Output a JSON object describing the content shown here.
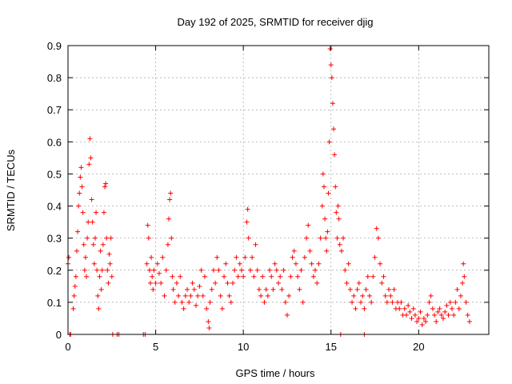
{
  "chart_data": {
    "type": "scatter",
    "title": "Day 192 of 2025, SRMTID for receiver djig",
    "xlabel": "GPS time / hours",
    "ylabel": "SRMTID / TECUs",
    "xlim": [
      0,
      24
    ],
    "ylim": [
      0,
      0.9
    ],
    "grid": true,
    "marker": "+",
    "series_color": "#ff0000",
    "x_ticks": [
      "0",
      "5",
      "10",
      "15",
      "20"
    ],
    "y_ticks": [
      "0",
      "0.1",
      "0.2",
      "0.3",
      "0.4",
      "0.5",
      "0.6",
      "0.7",
      "0.8",
      "0.9"
    ],
    "series": [
      {
        "name": "SRMTID",
        "points": [
          [
            0.0,
            0.22
          ],
          [
            0.05,
            0.24
          ],
          [
            0.1,
            0.0
          ],
          [
            0.15,
            0.0
          ],
          [
            0.3,
            0.08
          ],
          [
            0.35,
            0.12
          ],
          [
            0.4,
            0.15
          ],
          [
            0.45,
            0.18
          ],
          [
            0.5,
            0.26
          ],
          [
            0.55,
            0.32
          ],
          [
            0.6,
            0.4
          ],
          [
            0.65,
            0.44
          ],
          [
            0.7,
            0.49
          ],
          [
            0.75,
            0.52
          ],
          [
            0.8,
            0.46
          ],
          [
            0.85,
            0.38
          ],
          [
            0.9,
            0.28
          ],
          [
            0.95,
            0.2
          ],
          [
            1.0,
            0.24
          ],
          [
            1.05,
            0.18
          ],
          [
            1.1,
            0.3
          ],
          [
            1.15,
            0.35
          ],
          [
            1.2,
            0.53
          ],
          [
            1.25,
            0.61
          ],
          [
            1.3,
            0.55
          ],
          [
            1.35,
            0.42
          ],
          [
            1.4,
            0.35
          ],
          [
            1.45,
            0.28
          ],
          [
            1.5,
            0.22
          ],
          [
            1.55,
            0.3
          ],
          [
            1.6,
            0.38
          ],
          [
            1.65,
            0.2
          ],
          [
            1.7,
            0.12
          ],
          [
            1.75,
            0.08
          ],
          [
            1.8,
            0.18
          ],
          [
            1.85,
            0.26
          ],
          [
            1.9,
            0.14
          ],
          [
            1.95,
            0.2
          ],
          [
            2.0,
            0.28
          ],
          [
            2.05,
            0.38
          ],
          [
            2.1,
            0.46
          ],
          [
            2.15,
            0.47
          ],
          [
            2.2,
            0.3
          ],
          [
            2.25,
            0.2
          ],
          [
            2.3,
            0.16
          ],
          [
            2.35,
            0.25
          ],
          [
            2.4,
            0.22
          ],
          [
            2.45,
            0.3
          ],
          [
            2.5,
            0.18
          ],
          [
            2.55,
            0.0
          ],
          [
            2.8,
            0.0
          ],
          [
            2.9,
            0.0
          ],
          [
            4.3,
            0.0
          ],
          [
            4.4,
            0.0
          ],
          [
            15.55,
            0.0
          ],
          [
            16.9,
            0.0
          ],
          [
            4.5,
            0.22
          ],
          [
            4.55,
            0.34
          ],
          [
            4.6,
            0.3
          ],
          [
            4.65,
            0.2
          ],
          [
            4.7,
            0.16
          ],
          [
            4.75,
            0.24
          ],
          [
            4.8,
            0.18
          ],
          [
            4.85,
            0.14
          ],
          [
            4.9,
            0.2
          ],
          [
            5.0,
            0.16
          ],
          [
            5.1,
            0.22
          ],
          [
            5.2,
            0.19
          ],
          [
            5.3,
            0.16
          ],
          [
            5.4,
            0.24
          ],
          [
            5.5,
            0.12
          ],
          [
            5.6,
            0.2
          ],
          [
            5.7,
            0.28
          ],
          [
            5.75,
            0.36
          ],
          [
            5.8,
            0.42
          ],
          [
            5.85,
            0.44
          ],
          [
            5.9,
            0.3
          ],
          [
            5.95,
            0.18
          ],
          [
            6.0,
            0.14
          ],
          [
            6.1,
            0.1
          ],
          [
            6.2,
            0.16
          ],
          [
            6.3,
            0.12
          ],
          [
            6.4,
            0.18
          ],
          [
            6.5,
            0.1
          ],
          [
            6.6,
            0.08
          ],
          [
            6.7,
            0.12
          ],
          [
            6.8,
            0.14
          ],
          [
            6.9,
            0.1
          ],
          [
            7.0,
            0.12
          ],
          [
            7.1,
            0.16
          ],
          [
            7.2,
            0.14
          ],
          [
            7.3,
            0.09
          ],
          [
            7.4,
            0.12
          ],
          [
            7.5,
            0.15
          ],
          [
            7.6,
            0.2
          ],
          [
            7.7,
            0.12
          ],
          [
            7.8,
            0.18
          ],
          [
            7.9,
            0.08
          ],
          [
            8.0,
            0.04
          ],
          [
            8.05,
            0.02
          ],
          [
            8.1,
            0.1
          ],
          [
            8.2,
            0.14
          ],
          [
            8.3,
            0.2
          ],
          [
            8.4,
            0.16
          ],
          [
            8.5,
            0.24
          ],
          [
            8.6,
            0.2
          ],
          [
            8.7,
            0.12
          ],
          [
            8.8,
            0.08
          ],
          [
            8.9,
            0.18
          ],
          [
            9.0,
            0.22
          ],
          [
            9.1,
            0.16
          ],
          [
            9.2,
            0.12
          ],
          [
            9.3,
            0.1
          ],
          [
            9.4,
            0.16
          ],
          [
            9.5,
            0.2
          ],
          [
            9.6,
            0.24
          ],
          [
            9.7,
            0.18
          ],
          [
            9.8,
            0.22
          ],
          [
            9.9,
            0.2
          ],
          [
            10.0,
            0.18
          ],
          [
            10.1,
            0.24
          ],
          [
            10.2,
            0.35
          ],
          [
            10.25,
            0.39
          ],
          [
            10.3,
            0.3
          ],
          [
            10.4,
            0.2
          ],
          [
            10.5,
            0.24
          ],
          [
            10.6,
            0.18
          ],
          [
            10.7,
            0.28
          ],
          [
            10.8,
            0.2
          ],
          [
            10.9,
            0.14
          ],
          [
            11.0,
            0.12
          ],
          [
            11.1,
            0.18
          ],
          [
            11.2,
            0.1
          ],
          [
            11.3,
            0.14
          ],
          [
            11.4,
            0.12
          ],
          [
            11.5,
            0.2
          ],
          [
            11.6,
            0.18
          ],
          [
            11.7,
            0.14
          ],
          [
            11.8,
            0.22
          ],
          [
            11.9,
            0.2
          ],
          [
            12.0,
            0.16
          ],
          [
            12.1,
            0.18
          ],
          [
            12.2,
            0.14
          ],
          [
            12.3,
            0.2
          ],
          [
            12.4,
            0.1
          ],
          [
            12.5,
            0.06
          ],
          [
            12.6,
            0.12
          ],
          [
            12.7,
            0.18
          ],
          [
            12.8,
            0.24
          ],
          [
            12.9,
            0.26
          ],
          [
            13.0,
            0.22
          ],
          [
            13.1,
            0.18
          ],
          [
            13.2,
            0.14
          ],
          [
            13.3,
            0.2
          ],
          [
            13.4,
            0.1
          ],
          [
            13.5,
            0.24
          ],
          [
            13.6,
            0.3
          ],
          [
            13.7,
            0.34
          ],
          [
            13.8,
            0.26
          ],
          [
            13.9,
            0.22
          ],
          [
            14.0,
            0.18
          ],
          [
            14.1,
            0.2
          ],
          [
            14.2,
            0.16
          ],
          [
            14.3,
            0.22
          ],
          [
            14.4,
            0.3
          ],
          [
            14.5,
            0.4
          ],
          [
            14.55,
            0.5
          ],
          [
            14.6,
            0.46
          ],
          [
            14.65,
            0.36
          ],
          [
            14.7,
            0.3
          ],
          [
            14.75,
            0.26
          ],
          [
            14.8,
            0.32
          ],
          [
            14.85,
            0.44
          ],
          [
            14.9,
            0.6
          ],
          [
            14.95,
            0.89
          ],
          [
            15.0,
            0.84
          ],
          [
            15.05,
            0.8
          ],
          [
            15.1,
            0.72
          ],
          [
            15.15,
            0.64
          ],
          [
            15.2,
            0.56
          ],
          [
            15.25,
            0.46
          ],
          [
            15.3,
            0.38
          ],
          [
            15.35,
            0.3
          ],
          [
            15.4,
            0.4
          ],
          [
            15.45,
            0.36
          ],
          [
            15.5,
            0.28
          ],
          [
            15.6,
            0.26
          ],
          [
            15.7,
            0.3
          ],
          [
            15.8,
            0.2
          ],
          [
            15.9,
            0.16
          ],
          [
            16.0,
            0.22
          ],
          [
            16.1,
            0.14
          ],
          [
            16.2,
            0.1
          ],
          [
            16.3,
            0.12
          ],
          [
            16.4,
            0.08
          ],
          [
            16.5,
            0.14
          ],
          [
            16.6,
            0.16
          ],
          [
            16.7,
            0.1
          ],
          [
            16.8,
            0.12
          ],
          [
            16.9,
            0.08
          ],
          [
            17.0,
            0.14
          ],
          [
            17.1,
            0.18
          ],
          [
            17.2,
            0.12
          ],
          [
            17.3,
            0.1
          ],
          [
            17.4,
            0.18
          ],
          [
            17.5,
            0.24
          ],
          [
            17.6,
            0.33
          ],
          [
            17.7,
            0.3
          ],
          [
            17.8,
            0.22
          ],
          [
            17.9,
            0.16
          ],
          [
            18.0,
            0.18
          ],
          [
            18.1,
            0.12
          ],
          [
            18.2,
            0.1
          ],
          [
            18.3,
            0.14
          ],
          [
            18.4,
            0.12
          ],
          [
            18.5,
            0.1
          ],
          [
            18.6,
            0.14
          ],
          [
            18.7,
            0.08
          ],
          [
            18.8,
            0.1
          ],
          [
            18.9,
            0.08
          ],
          [
            19.0,
            0.1
          ],
          [
            19.1,
            0.06
          ],
          [
            19.2,
            0.08
          ],
          [
            19.3,
            0.06
          ],
          [
            19.4,
            0.09
          ],
          [
            19.5,
            0.07
          ],
          [
            19.6,
            0.05
          ],
          [
            19.7,
            0.08
          ],
          [
            19.8,
            0.06
          ],
          [
            19.9,
            0.04
          ],
          [
            20.0,
            0.05
          ],
          [
            20.1,
            0.07
          ],
          [
            20.2,
            0.03
          ],
          [
            20.3,
            0.05
          ],
          [
            20.4,
            0.04
          ],
          [
            20.5,
            0.06
          ],
          [
            20.6,
            0.1
          ],
          [
            20.7,
            0.12
          ],
          [
            20.8,
            0.08
          ],
          [
            20.9,
            0.06
          ],
          [
            21.0,
            0.04
          ],
          [
            21.1,
            0.07
          ],
          [
            21.2,
            0.08
          ],
          [
            21.3,
            0.06
          ],
          [
            21.4,
            0.05
          ],
          [
            21.5,
            0.07
          ],
          [
            21.6,
            0.09
          ],
          [
            21.7,
            0.06
          ],
          [
            21.8,
            0.1
          ],
          [
            21.9,
            0.08
          ],
          [
            22.0,
            0.06
          ],
          [
            22.1,
            0.1
          ],
          [
            22.2,
            0.14
          ],
          [
            22.3,
            0.08
          ],
          [
            22.4,
            0.12
          ],
          [
            22.5,
            0.16
          ],
          [
            22.55,
            0.22
          ],
          [
            22.6,
            0.18
          ],
          [
            22.7,
            0.1
          ],
          [
            22.8,
            0.06
          ],
          [
            22.9,
            0.04
          ]
        ]
      }
    ]
  }
}
